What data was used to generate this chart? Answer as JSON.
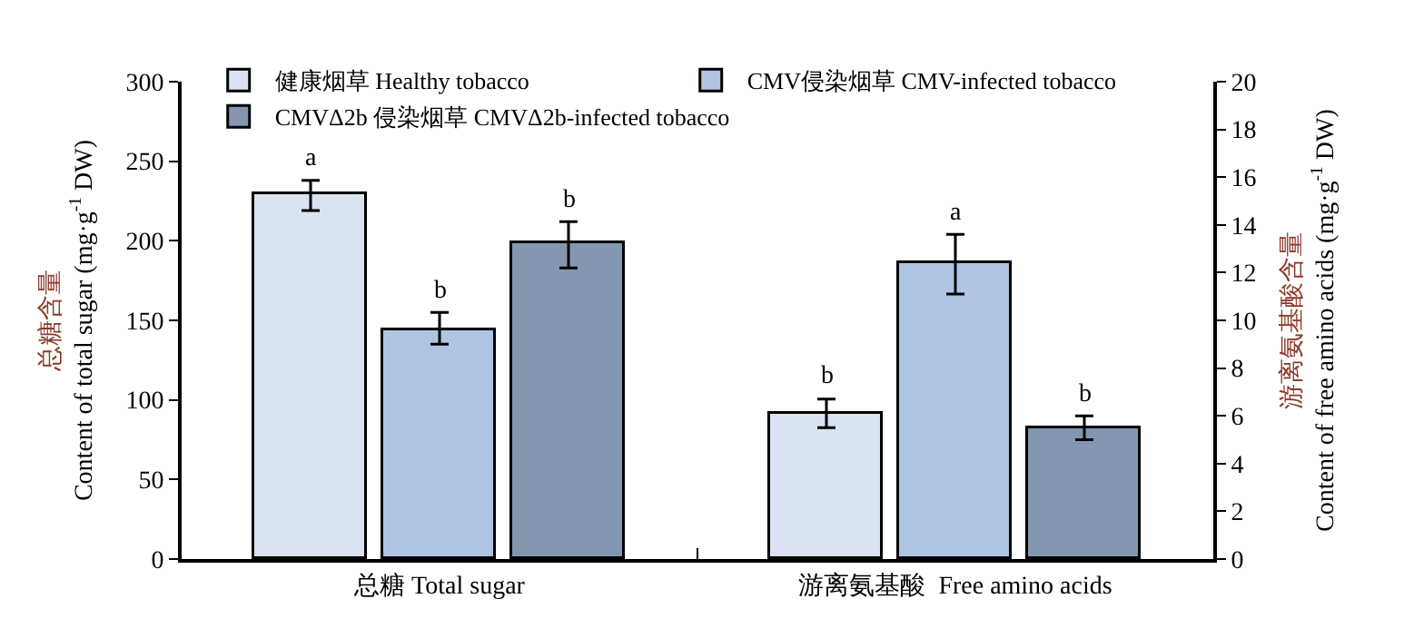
{
  "chart_data": {
    "type": "bar",
    "categories": [
      "总糖 Total sugar",
      "游离氨基酸  Free amino acids"
    ],
    "ylabel": "总糖含量\nContent of total sugar (mg·g$^{-1}$ DW)",
    "y2label": "游离氨基酸含量\nContent of free amino acids (mg·g$^{-1}$ DW)",
    "ylim": [
      0,
      300
    ],
    "yticks": [
      0,
      50,
      100,
      150,
      200,
      250,
      300
    ],
    "y2lim": [
      0,
      20
    ],
    "y2ticks": [
      0,
      2,
      4,
      6,
      8,
      10,
      12,
      14,
      16,
      18,
      20
    ],
    "legend": "top left",
    "series": [
      {
        "name": "健康烟草 Healthy tobacco",
        "color": "#dae3f2",
        "values": [
          229,
          null
        ],
        "errors": [
          [
            219,
            238
          ],
          null
        ],
        "value_labels": [
          "a",
          null
        ]
      },
      {
        "name": "CMV侵染烟草 CMV-infected tobacco",
        "color": "#b0c4e4",
        "values": [
          144,
          null
        ],
        "errors": [
          [
            135,
            155
          ],
          null
        ],
        "value_labels": [
          "b",
          null
        ]
      },
      {
        "name": "CMVΔ2b 侵染烟草 CMVΔ2b-infected tobacco",
        "color": "#8496b0",
        "values": [
          199,
          null
        ],
        "errors": [
          [
            183,
            212
          ],
          null
        ],
        "value_labels": [
          "b",
          null
        ]
      },
      {
        "color": "#dae3f2",
        "axis": "y2",
        "values": [
          null,
          6.1
        ],
        "errors": [
          null,
          [
            5.5,
            6.7
          ]
        ],
        "value_labels": [
          null,
          "b"
        ]
      },
      {
        "color": "#b0c4e4",
        "axis": "y2",
        "values": [
          null,
          12.4
        ],
        "errors": [
          null,
          [
            11.1,
            13.6
          ]
        ],
        "value_labels": [
          null,
          "a"
        ]
      },
      {
        "color": "#8496b0",
        "axis": "y2",
        "values": [
          null,
          5.5
        ],
        "errors": [
          null,
          [
            5.0,
            6.0
          ]
        ],
        "value_labels": [
          null,
          "b"
        ]
      }
    ]
  }
}
